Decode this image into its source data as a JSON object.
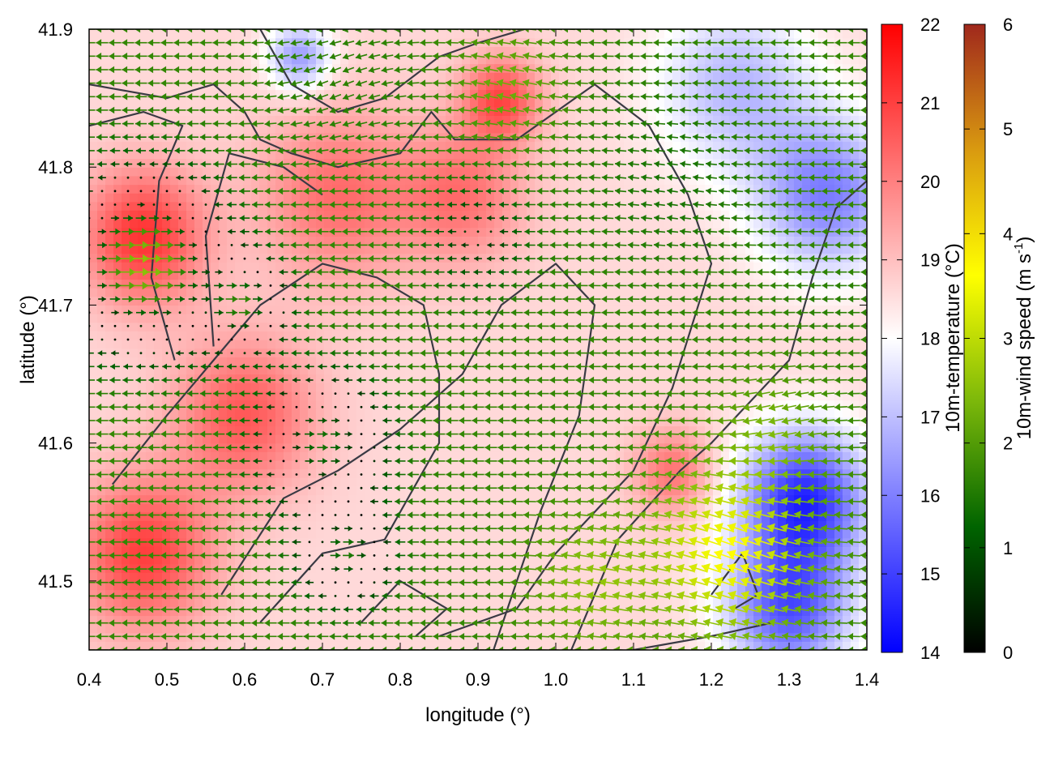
{
  "chart_data": {
    "type": "heatmap",
    "title": "",
    "xlabel": "longitude (°)",
    "ylabel": "latitude (°)",
    "xlim": [
      0.4,
      1.4
    ],
    "ylim": [
      41.45,
      41.9
    ],
    "xticks": [
      "0.4",
      "0.5",
      "0.6",
      "0.7",
      "0.8",
      "0.9",
      "1.0",
      "1.1",
      "1.2",
      "1.3",
      "1.4"
    ],
    "yticks": [
      "41.5",
      "41.6",
      "41.7",
      "41.8",
      "41.9"
    ],
    "grid": false,
    "colorbars": [
      {
        "name": "temperature",
        "label": "10m-temperature (°C)",
        "range": [
          14,
          22
        ],
        "ticks": [
          "14",
          "15",
          "16",
          "17",
          "18",
          "19",
          "20",
          "21",
          "22"
        ],
        "colors": [
          "#0000ff",
          "#ffffff",
          "#ff0000"
        ]
      },
      {
        "name": "wind",
        "label_main": "10m-wind speed (m s",
        "label_sup": "-1",
        "label_close": ")",
        "range": [
          0,
          6
        ],
        "ticks": [
          "0",
          "1",
          "2",
          "3",
          "4",
          "5",
          "6"
        ],
        "colors": [
          "#000000",
          "#006400",
          "#7cb80a",
          "#ffff00",
          "#d99a10",
          "#a0281c"
        ]
      }
    ],
    "temperature_field": {
      "background": 18.6,
      "features": [
        {
          "lon": 0.47,
          "lat": 41.75,
          "value": 21.2,
          "radius": 0.08
        },
        {
          "lon": 0.47,
          "lat": 41.52,
          "value": 21.0,
          "radius": 0.09
        },
        {
          "lon": 0.6,
          "lat": 41.62,
          "value": 20.6,
          "radius": 0.09
        },
        {
          "lon": 0.72,
          "lat": 41.78,
          "value": 20.3,
          "radius": 0.1
        },
        {
          "lon": 0.88,
          "lat": 41.78,
          "value": 20.2,
          "radius": 0.08
        },
        {
          "lon": 0.93,
          "lat": 41.85,
          "value": 20.8,
          "radius": 0.05
        },
        {
          "lon": 1.15,
          "lat": 41.58,
          "value": 20.2,
          "radius": 0.05
        },
        {
          "lon": 1.32,
          "lat": 41.56,
          "value": 14.7,
          "radius": 0.08
        },
        {
          "lon": 1.3,
          "lat": 41.48,
          "value": 15.4,
          "radius": 0.08
        },
        {
          "lon": 1.35,
          "lat": 41.78,
          "value": 16.0,
          "radius": 0.09
        },
        {
          "lon": 1.23,
          "lat": 41.86,
          "value": 16.9,
          "radius": 0.1
        },
        {
          "lon": 0.67,
          "lat": 41.88,
          "value": 16.4,
          "radius": 0.04
        }
      ]
    },
    "wind_field": {
      "background_u": -1.7,
      "background_v": 0.0,
      "features": [
        {
          "lon": 0.47,
          "lat": 41.73,
          "u": 2.6,
          "v": 0.0,
          "radius": 0.09
        },
        {
          "lon": 0.45,
          "lat": 41.64,
          "u": -1.8,
          "v": 0.0,
          "radius": 0.06
        },
        {
          "lon": 0.6,
          "lat": 41.7,
          "u": 1.3,
          "v": 0.0,
          "radius": 0.05
        },
        {
          "lon": 0.7,
          "lat": 41.6,
          "u": 1.4,
          "v": 0.0,
          "radius": 0.07
        },
        {
          "lon": 0.73,
          "lat": 41.52,
          "u": 1.4,
          "v": 0.0,
          "radius": 0.05
        },
        {
          "lon": 0.9,
          "lat": 41.75,
          "u": -0.6,
          "v": 0.0,
          "radius": 0.06
        },
        {
          "lon": 1.15,
          "lat": 41.79,
          "u": -1.4,
          "v": 0.2,
          "radius": 0.1
        },
        {
          "lon": 0.72,
          "lat": 41.86,
          "u": -1.5,
          "v": -0.6,
          "radius": 0.08
        },
        {
          "lon": 0.94,
          "lat": 41.86,
          "u": -2.2,
          "v": 0.5,
          "radius": 0.07
        },
        {
          "lon": 1.23,
          "lat": 41.52,
          "u": -3.4,
          "v": 1.2,
          "radius": 0.1
        },
        {
          "lon": 1.05,
          "lat": 41.5,
          "u": -2.5,
          "v": 0.4,
          "radius": 0.08
        },
        {
          "lon": 1.28,
          "lat": 41.61,
          "u": -2.2,
          "v": -0.6,
          "radius": 0.07
        },
        {
          "lon": 1.36,
          "lat": 41.7,
          "u": -1.6,
          "v": 0.0,
          "radius": 0.06
        }
      ]
    },
    "contours": [
      [
        [
          0.4,
          41.86
        ],
        [
          0.5,
          41.85
        ],
        [
          0.56,
          41.86
        ],
        [
          0.6,
          41.84
        ],
        [
          0.62,
          41.82
        ],
        [
          0.66,
          41.81
        ],
        [
          0.72,
          41.8
        ],
        [
          0.8,
          41.81
        ],
        [
          0.84,
          41.84
        ],
        [
          0.87,
          41.82
        ],
        [
          0.95,
          41.82
        ],
        [
          1.0,
          41.84
        ],
        [
          1.05,
          41.86
        ],
        [
          1.12,
          41.83
        ],
        [
          1.17,
          41.78
        ],
        [
          1.2,
          41.73
        ],
        [
          1.15,
          41.64
        ],
        [
          1.1,
          41.58
        ],
        [
          1.0,
          41.52
        ],
        [
          0.95,
          41.48
        ],
        [
          0.85,
          41.46
        ]
      ],
      [
        [
          0.62,
          41.9
        ],
        [
          0.66,
          41.86
        ],
        [
          0.72,
          41.84
        ],
        [
          0.78,
          41.85
        ],
        [
          0.85,
          41.88
        ],
        [
          0.9,
          41.89
        ],
        [
          0.96,
          41.9
        ]
      ],
      [
        [
          0.51,
          41.66
        ],
        [
          0.48,
          41.72
        ],
        [
          0.49,
          41.79
        ],
        [
          0.52,
          41.83
        ],
        [
          0.47,
          41.84
        ],
        [
          0.4,
          41.83
        ]
      ],
      [
        [
          0.56,
          41.67
        ],
        [
          0.55,
          41.75
        ],
        [
          0.58,
          41.81
        ],
        [
          0.65,
          41.8
        ],
        [
          0.7,
          41.78
        ]
      ],
      [
        [
          0.43,
          41.57
        ],
        [
          0.5,
          41.62
        ],
        [
          0.56,
          41.66
        ],
        [
          0.62,
          41.7
        ],
        [
          0.7,
          41.73
        ],
        [
          0.77,
          41.72
        ],
        [
          0.83,
          41.7
        ],
        [
          0.85,
          41.65
        ],
        [
          0.85,
          41.6
        ],
        [
          0.78,
          41.53
        ],
        [
          0.7,
          41.52
        ],
        [
          0.62,
          41.47
        ]
      ],
      [
        [
          0.57,
          41.49
        ],
        [
          0.65,
          41.56
        ],
        [
          0.72,
          41.58
        ],
        [
          0.8,
          41.61
        ],
        [
          0.88,
          41.65
        ],
        [
          0.93,
          41.7
        ],
        [
          1.0,
          41.73
        ],
        [
          1.05,
          41.7
        ],
        [
          1.03,
          41.62
        ],
        [
          0.98,
          41.55
        ],
        [
          0.95,
          41.5
        ],
        [
          0.92,
          41.45
        ]
      ],
      [
        [
          1.02,
          41.45
        ],
        [
          1.08,
          41.53
        ],
        [
          1.16,
          41.58
        ],
        [
          1.2,
          41.6
        ],
        [
          1.25,
          41.63
        ],
        [
          1.3,
          41.66
        ],
        [
          1.33,
          41.72
        ],
        [
          1.36,
          41.77
        ],
        [
          1.4,
          41.79
        ]
      ],
      [
        [
          1.2,
          41.49
        ],
        [
          1.24,
          41.52
        ],
        [
          1.26,
          41.49
        ],
        [
          1.23,
          41.48
        ]
      ],
      [
        [
          0.75,
          41.47
        ],
        [
          0.8,
          41.5
        ],
        [
          0.86,
          41.48
        ],
        [
          0.82,
          41.46
        ]
      ],
      [
        [
          1.1,
          41.45
        ],
        [
          1.2,
          41.46
        ],
        [
          1.28,
          41.47
        ]
      ]
    ]
  }
}
